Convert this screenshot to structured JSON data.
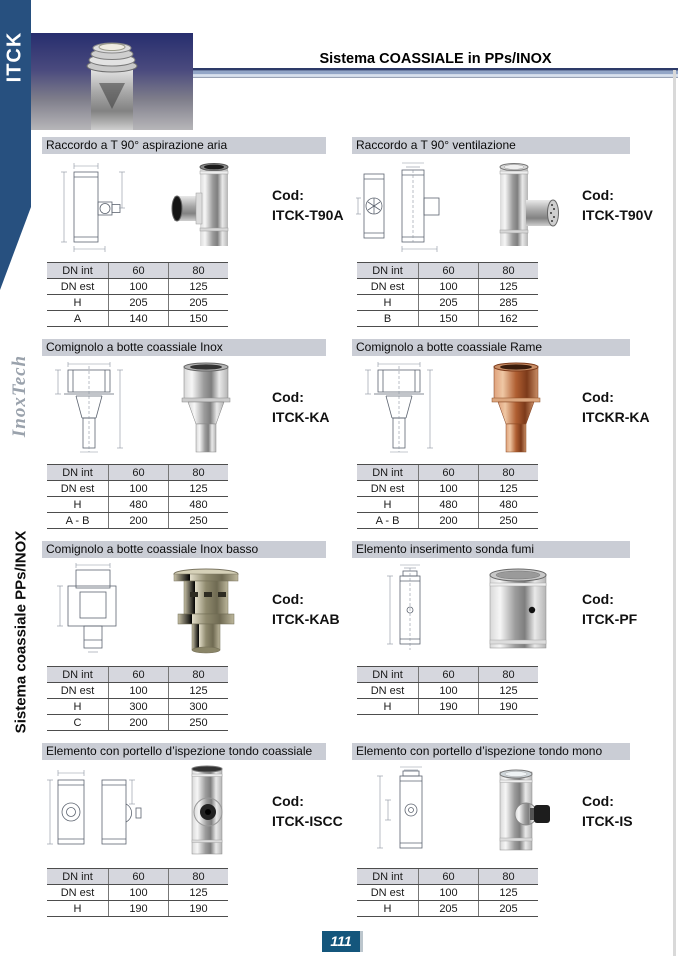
{
  "sidebar": {
    "brand": "ITCK",
    "logo": "InoxTech",
    "vertical_label": "Sistema coassiale PPs/INOX"
  },
  "header": {
    "title": "Sistema COASSIALE in PPs/INOX"
  },
  "labels": {
    "cod": "Cod:"
  },
  "footer": {
    "page_number": "111"
  },
  "colors": {
    "ribbon_navy": "#27507f",
    "header_bar_blue": "#93a6c7",
    "section_title_bg": "#cacdd5",
    "table_header_bg": "#d6d7de",
    "page_number_bg": "#14567c",
    "copper": "#b05f32"
  },
  "sections": [
    {
      "title": "Raccordo a T 90° aspirazione aria",
      "code": "ITCK-T90A",
      "table": [
        [
          "DN int",
          "60",
          "80"
        ],
        [
          "DN est",
          "100",
          "125"
        ],
        [
          "H",
          "205",
          "205"
        ],
        [
          "A",
          "140",
          "150"
        ]
      ]
    },
    {
      "title": "Raccordo a T 90° ventilazione",
      "code": "ITCK-T90V",
      "table": [
        [
          "DN int",
          "60",
          "80"
        ],
        [
          "DN est",
          "100",
          "125"
        ],
        [
          "H",
          "205",
          "285"
        ],
        [
          "B",
          "150",
          "162"
        ]
      ]
    },
    {
      "title": "Comignolo a botte coassiale Inox",
      "code": "ITCK-KA",
      "table": [
        [
          "DN int",
          "60",
          "80"
        ],
        [
          "DN est",
          "100",
          "125"
        ],
        [
          "H",
          "480",
          "480"
        ],
        [
          "A - B",
          "200",
          "250"
        ]
      ]
    },
    {
      "title": "Comignolo a botte coassiale Rame",
      "code": "ITCKR-KA",
      "table": [
        [
          "DN int",
          "60",
          "80"
        ],
        [
          "DN est",
          "100",
          "125"
        ],
        [
          "H",
          "480",
          "480"
        ],
        [
          "A - B",
          "200",
          "250"
        ]
      ]
    },
    {
      "title": "Comignolo a botte coassiale Inox basso",
      "code": "ITCK-KAB",
      "table": [
        [
          "DN int",
          "60",
          "80"
        ],
        [
          "DN est",
          "100",
          "125"
        ],
        [
          "H",
          "300",
          "300"
        ],
        [
          "C",
          "200",
          "250"
        ]
      ]
    },
    {
      "title": "Elemento inserimento sonda fumi",
      "code": "ITCK-PF",
      "table": [
        [
          "DN int",
          "60",
          "80"
        ],
        [
          "DN est",
          "100",
          "125"
        ],
        [
          "H",
          "190",
          "190"
        ]
      ]
    },
    {
      "title": "Elemento con portello d’ispezione tondo coassiale",
      "code": "ITCK-ISCC",
      "table": [
        [
          "DN int",
          "60",
          "80"
        ],
        [
          "DN est",
          "100",
          "125"
        ],
        [
          "H",
          "190",
          "190"
        ]
      ]
    },
    {
      "title": "Elemento con portello d’ispezione tondo mono",
      "code": "ITCK-IS",
      "table": [
        [
          "DN int",
          "60",
          "80"
        ],
        [
          "DN est",
          "100",
          "125"
        ],
        [
          "H",
          "205",
          "205"
        ]
      ]
    }
  ]
}
